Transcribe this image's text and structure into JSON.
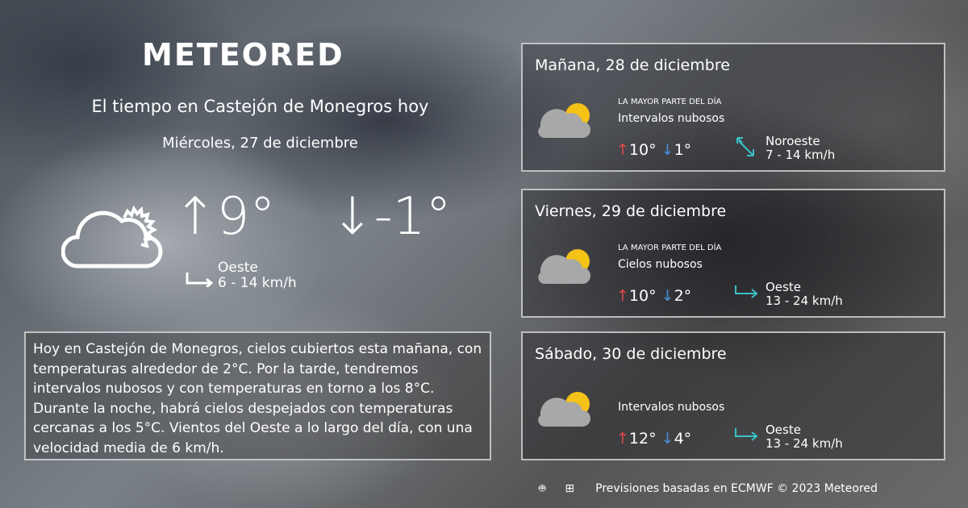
{
  "brand": "METEORED",
  "header": {
    "title": "El tiempo en Castejón de Monegros hoy",
    "date": "Miércoles, 27 de diciembre"
  },
  "today": {
    "max": "9°",
    "min": "-1°",
    "wind_dir": "Oeste",
    "wind_speed": "6 - 14 km/h",
    "icon": "partly-cloudy-icon"
  },
  "description": "Hoy en Castejón de Monegros, cielos cubiertos esta mañana, con temperaturas alrededor de 2°C. Por la tarde, tendremos intervalos nubosos y con temperaturas en torno a los 8°C. Durante la noche, habrá cielos despejados  con temperaturas cercanas a los 5°C. Vientos del Oeste a lo largo del día, con una velocidad media de 6 km/h.",
  "forecast": [
    {
      "day": "Mañana, 28 de diciembre",
      "most": "LA MAYOR PARTE DEL DÍA",
      "cond": "Intervalos nubosos",
      "max": "10°",
      "min": "1°",
      "wind_dir": "Noroeste",
      "wind_speed": "7 - 14 km/h"
    },
    {
      "day": "Viernes, 29 de diciembre",
      "most": "LA MAYOR PARTE DEL DÍA",
      "cond": "Cielos nubosos",
      "max": "10°",
      "min": "2°",
      "wind_dir": "Oeste",
      "wind_speed": "13 - 24 km/h"
    },
    {
      "day": "Sábado, 30 de diciembre",
      "most": "",
      "cond": "Intervalos nubosos",
      "max": "12°",
      "min": "4°",
      "wind_dir": "Oeste",
      "wind_speed": "13 - 24 km/h"
    }
  ],
  "footer": {
    "text": "Previsiones basadas en ECMWF © 2023 Meteored"
  },
  "colors": {
    "max": "#e04848",
    "min": "#4a90d9",
    "wind": "#3cc0c8",
    "sun": "#f5c218",
    "cloud": "#a8a8a8"
  }
}
